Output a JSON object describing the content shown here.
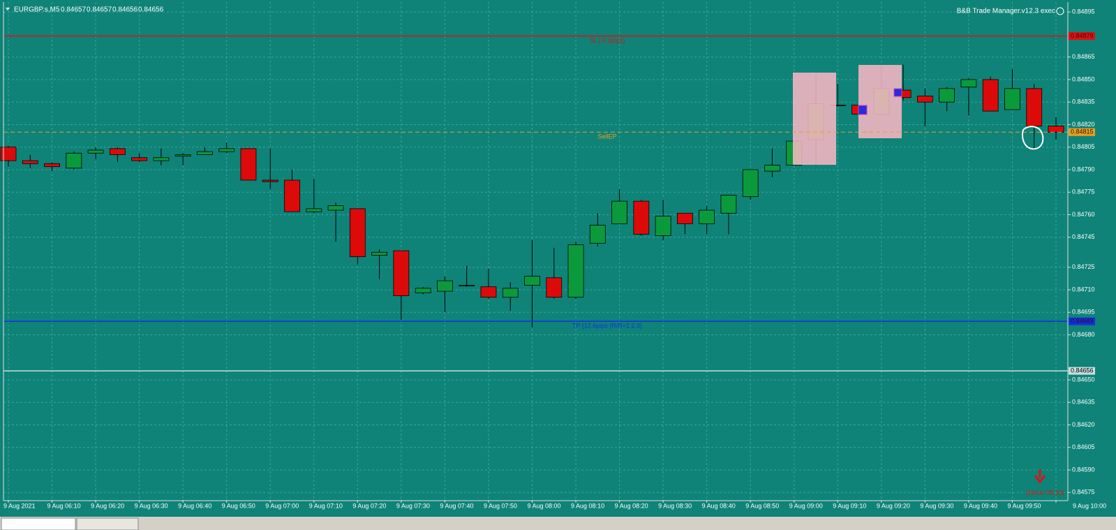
{
  "chart_data": {
    "type": "candlestick",
    "title": "EURGBP.s,M5",
    "quote": [
      0.84657,
      0.84657,
      0.84656,
      0.84656
    ],
    "indicator": "B&B Trade Manager.v12.3 exec",
    "countdown": "(10min 09:10)",
    "up_color": "#0a9a3c",
    "down_color": "#dd0a0a",
    "grid": true,
    "ylim": [
      0.8457,
      0.84903
    ],
    "yticks": [
      0.84895,
      0.84865,
      {
        "value": 0.8485,
        "label": "0.84850"
      },
      0.84835,
      {
        "value": 0.8482,
        "label": "0.84820"
      },
      0.84805,
      {
        "value": 0.8479,
        "label": "0.84790"
      },
      0.84775,
      {
        "value": 0.8476,
        "label": "0.84760"
      },
      0.84745,
      0.84725,
      {
        "value": 0.8471,
        "label": "0.84710"
      },
      0.84695,
      {
        "value": 0.8468,
        "label": "0.84680"
      },
      {
        "value": 0.8465,
        "label": "0.84650"
      },
      0.84635,
      {
        "value": 0.8462,
        "label": "0.84620"
      },
      0.84605,
      {
        "value": 0.8459,
        "label": "0.84590"
      },
      0.84575
    ],
    "x": [
      "9 Aug 2021",
      null,
      "9 Aug 06:10",
      null,
      "9 Aug 06:20",
      null,
      "9 Aug 06:30",
      null,
      "9 Aug 06:40",
      null,
      "9 Aug 06:50",
      null,
      "9 Aug 07:00",
      null,
      "9 Aug 07:10",
      null,
      "9 Aug 07:20",
      null,
      "9 Aug 07:30",
      null,
      "9 Aug 07:40",
      null,
      "9 Aug 07:50",
      null,
      "9 Aug 08:00",
      null,
      "9 Aug 08:10",
      null,
      "9 Aug 08:20",
      null,
      "9 Aug 08:30",
      null,
      "9 Aug 08:40",
      null,
      "9 Aug 08:50",
      null,
      "9 Aug 09:00",
      null,
      "9 Aug 09:10",
      null,
      "9 Aug 09:20",
      null,
      "9 Aug 09:30",
      null,
      "9 Aug 09:40",
      null,
      "9 Aug 09:50",
      null,
      "9 Aug 10:00"
    ],
    "ohlc": [
      [
        0.84805,
        0.84806,
        0.84792,
        0.84796
      ],
      [
        0.84796,
        0.848,
        0.84791,
        0.84794
      ],
      [
        0.84794,
        0.84795,
        0.84789,
        0.84792
      ],
      [
        0.84791,
        0.84802,
        0.8479,
        0.84801
      ],
      [
        0.84801,
        0.84805,
        0.84797,
        0.84803
      ],
      [
        0.84804,
        0.84805,
        0.84795,
        0.848
      ],
      [
        0.84798,
        0.84801,
        0.84795,
        0.84796
      ],
      [
        0.84796,
        0.84804,
        0.84793,
        0.84798
      ],
      [
        0.84799,
        0.84801,
        0.84793,
        0.848
      ],
      [
        0.848,
        0.84805,
        0.848,
        0.84802
      ],
      [
        0.84802,
        0.84808,
        0.84801,
        0.84804
      ],
      [
        0.84804,
        0.84804,
        0.84783,
        0.84783
      ],
      [
        0.84783,
        0.84804,
        0.84777,
        0.84782
      ],
      [
        0.84783,
        0.8479,
        0.84762,
        0.84762
      ],
      [
        0.84762,
        0.84784,
        0.84761,
        0.84764
      ],
      [
        0.84763,
        0.84768,
        0.84742,
        0.84766
      ],
      [
        0.84764,
        0.84764,
        0.84727,
        0.84732
      ],
      [
        0.84733,
        0.84737,
        0.84717,
        0.84735
      ],
      [
        0.84736,
        0.84736,
        0.8469,
        0.84706
      ],
      [
        0.84708,
        0.84712,
        0.84707,
        0.84711
      ],
      [
        0.84709,
        0.84719,
        0.84695,
        0.84716
      ],
      [
        0.84713,
        0.84726,
        0.84712,
        0.84713
      ],
      [
        0.84712,
        0.84724,
        0.84704,
        0.84705
      ],
      [
        0.84705,
        0.84715,
        0.84696,
        0.84711
      ],
      [
        0.84713,
        0.84743,
        0.84685,
        0.84719
      ],
      [
        0.84718,
        0.84738,
        0.84704,
        0.84705
      ],
      [
        0.84705,
        0.84742,
        0.84704,
        0.8474
      ],
      [
        0.84741,
        0.84761,
        0.84739,
        0.84753
      ],
      [
        0.84754,
        0.84777,
        0.84754,
        0.84769
      ],
      [
        0.84769,
        0.8477,
        0.84746,
        0.84747
      ],
      [
        0.84746,
        0.8477,
        0.84743,
        0.84759
      ],
      [
        0.84761,
        0.84761,
        0.84747,
        0.84754
      ],
      [
        0.84754,
        0.84766,
        0.84747,
        0.84763
      ],
      [
        0.84761,
        0.84773,
        0.84747,
        0.84773
      ],
      [
        0.84772,
        0.8479,
        0.8477,
        0.8479
      ],
      [
        0.84789,
        0.84804,
        0.84785,
        0.84793
      ],
      [
        0.84793,
        0.84809,
        0.84793,
        0.84809
      ],
      [
        0.8481,
        0.84854,
        0.84793,
        0.84834
      ],
      [
        0.84833,
        0.84847,
        0.84832,
        0.84833
      ],
      [
        0.84833,
        0.84833,
        0.84826,
        0.84827
      ],
      [
        0.84827,
        0.84859,
        0.84826,
        0.84844
      ],
      [
        0.84843,
        0.8486,
        0.84836,
        0.84838
      ],
      [
        0.84839,
        0.84844,
        0.84819,
        0.84835
      ],
      [
        0.84835,
        0.84845,
        0.84829,
        0.84844
      ],
      [
        0.84845,
        0.84851,
        0.84826,
        0.8485
      ],
      [
        0.8485,
        0.84852,
        0.84829,
        0.84829
      ],
      [
        0.8483,
        0.84857,
        0.8483,
        0.84844
      ],
      [
        0.84844,
        0.84847,
        0.84803,
        0.84819
      ],
      [
        0.84819,
        0.84825,
        0.8481,
        0.84815
      ]
    ],
    "levels": [
      {
        "name": "SL ( 6.3pips)",
        "value": 0.84879,
        "color": "#e01010",
        "dash": false
      },
      {
        "name": "SellEP",
        "value": 0.84815,
        "color": "#e8a020",
        "dash": true
      },
      {
        "name": "TP (12.6pips (R/R=1:2.0)",
        "value": 0.84689,
        "color": "#1030e0",
        "dash": false
      },
      {
        "value": 0.84656,
        "color": "#c8dede",
        "dash": false
      }
    ]
  }
}
